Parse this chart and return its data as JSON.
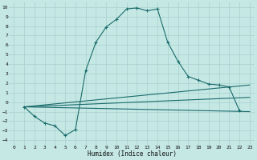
{
  "title": "",
  "xlabel": "Humidex (Indice chaleur)",
  "background_color": "#c5e8e5",
  "grid_color": "#a8d0cc",
  "line_color": "#1a6b6b",
  "xlim": [
    -0.5,
    23.5
  ],
  "ylim": [
    -4.5,
    10.5
  ],
  "xticks": [
    0,
    1,
    2,
    3,
    4,
    5,
    6,
    7,
    8,
    9,
    10,
    11,
    12,
    13,
    14,
    15,
    16,
    17,
    18,
    19,
    20,
    21,
    22,
    23
  ],
  "yticks": [
    -4,
    -3,
    -2,
    -1,
    0,
    1,
    2,
    3,
    4,
    5,
    6,
    7,
    8,
    9,
    10
  ],
  "curve1_x": [
    1,
    2,
    3,
    4,
    5,
    6,
    7,
    8,
    9,
    10,
    11,
    12,
    13,
    14,
    15,
    16,
    17,
    18,
    19,
    20,
    21,
    22
  ],
  "curve1_y": [
    -0.5,
    -1.5,
    -2.2,
    -2.5,
    -3.5,
    -2.9,
    3.3,
    6.3,
    7.9,
    8.7,
    9.8,
    9.9,
    9.6,
    9.8,
    6.3,
    4.3,
    2.7,
    2.3,
    1.9,
    1.8,
    1.6,
    -0.9
  ],
  "line2_x": [
    1,
    23
  ],
  "line2_y": [
    -0.5,
    -1.0
  ],
  "line3_x": [
    1,
    23
  ],
  "line3_y": [
    -0.5,
    0.5
  ],
  "line4_x": [
    1,
    23
  ],
  "line4_y": [
    -0.5,
    1.8
  ]
}
